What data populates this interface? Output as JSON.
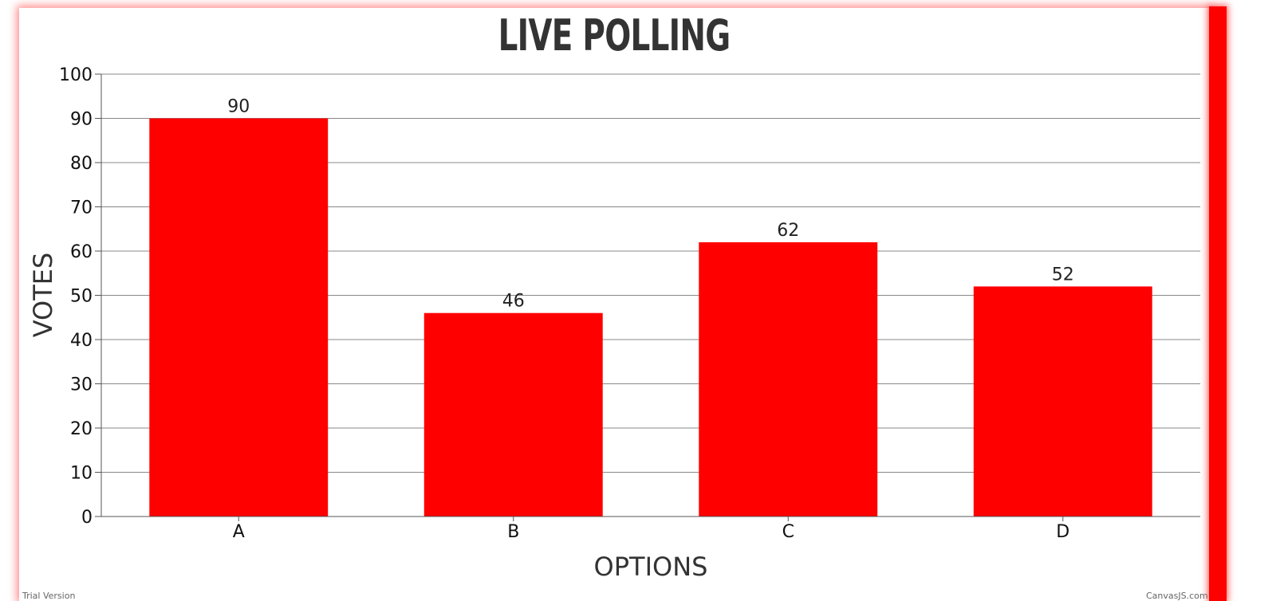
{
  "chart_data": {
    "type": "bar",
    "title": "LIVE POLLING",
    "xlabel": "OPTIONS",
    "ylabel": "VOTES",
    "categories": [
      "A",
      "B",
      "C",
      "D"
    ],
    "values": [
      90,
      46,
      62,
      52
    ],
    "ylim": [
      0,
      100
    ],
    "yticks": [
      "0",
      "10",
      "20",
      "30",
      "40",
      "50",
      "60",
      "70",
      "80",
      "90",
      "100"
    ],
    "grid": true,
    "legend": false,
    "bar_color": "#ff0000"
  },
  "footer": {
    "left_text": "Trial Version",
    "right_text": "CanvasJS.com"
  },
  "colors": {
    "accent": "#ff0000",
    "gridline": "#888888",
    "title": "#333333"
  }
}
